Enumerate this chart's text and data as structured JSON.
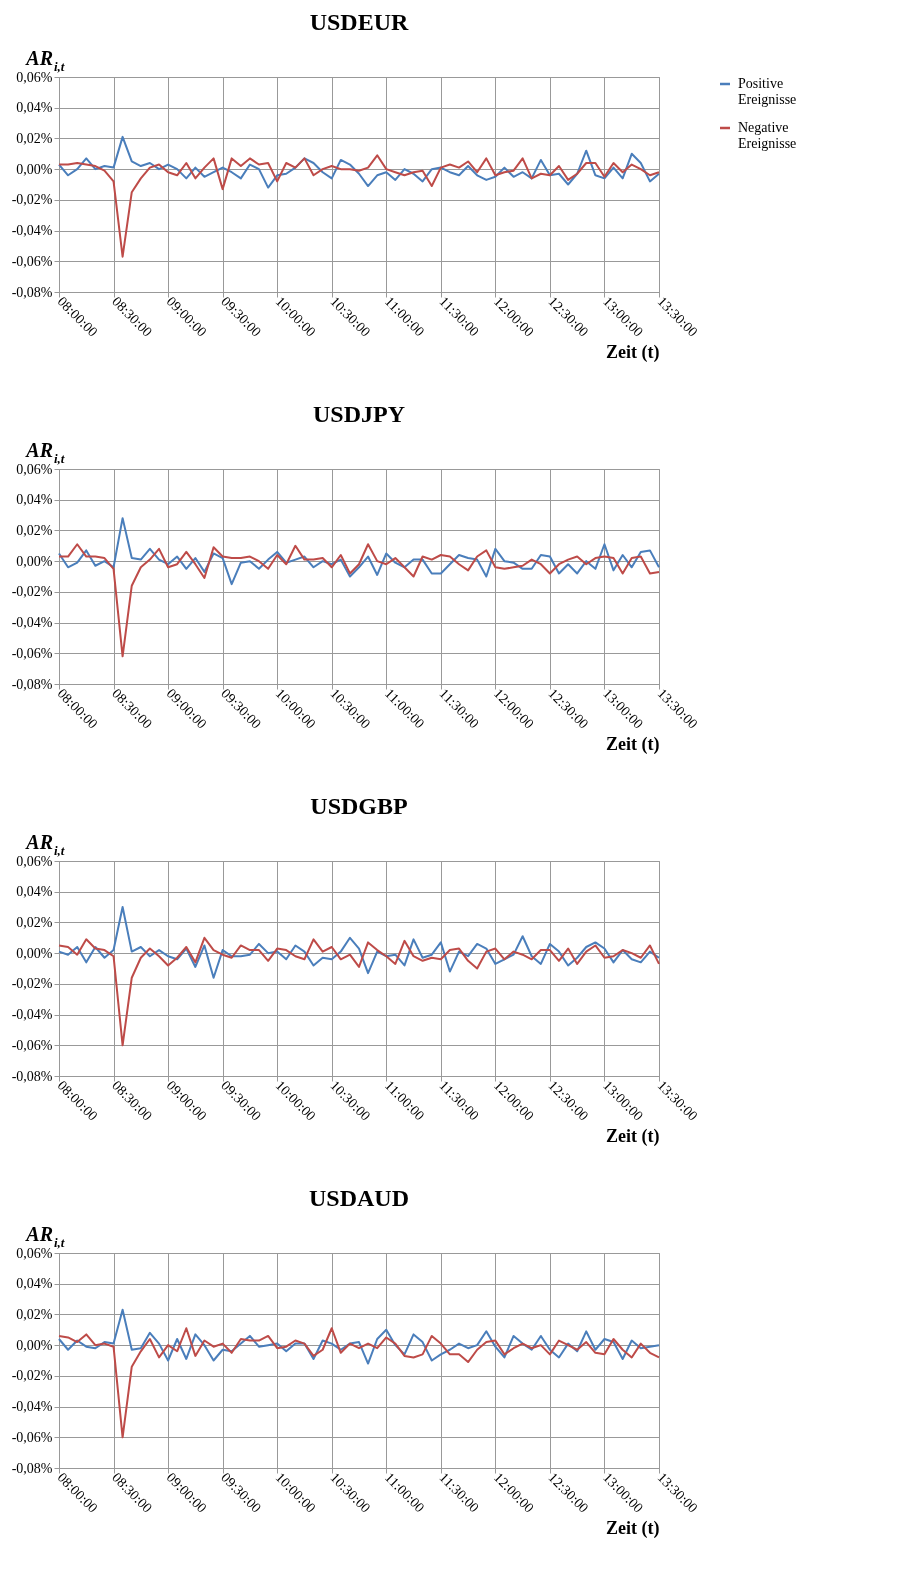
{
  "chart_data": [
    {
      "type": "line",
      "title": "USDEUR",
      "xlabel": "Zeit (t)",
      "ylabel": "AR$_{i,t}$",
      "legend": "right",
      "grid": true,
      "x": [
        8,
        8.083,
        8.167,
        8.25,
        8.333,
        8.417,
        8.5,
        8.583,
        8.667,
        8.75,
        8.833,
        8.917,
        9,
        9.083,
        9.167,
        9.25,
        9.333,
        9.417,
        9.5,
        9.583,
        9.667,
        9.75,
        9.833,
        9.917,
        10,
        10.083,
        10.167,
        10.25,
        10.333,
        10.417,
        10.5,
        10.583,
        10.667,
        10.75,
        10.833,
        10.917,
        11,
        11.083,
        11.167,
        11.25,
        11.333,
        11.417,
        11.5,
        11.583,
        11.667,
        11.75,
        11.833,
        11.917,
        12,
        12.083,
        12.167,
        12.25,
        12.333,
        12.417,
        12.5,
        12.583,
        12.667,
        12.75,
        12.833,
        12.917,
        13,
        13.083,
        13.167,
        13.25,
        13.333,
        13.417,
        13.5
      ],
      "xlim": [
        8,
        13.5
      ],
      "xticks": [
        {
          "value": 8,
          "label": "08:00:00"
        },
        {
          "value": 8.5,
          "label": "08:30:00"
        },
        {
          "value": 9,
          "label": "09:00:00"
        },
        {
          "value": 9.5,
          "label": "09:30:00"
        },
        {
          "value": 10,
          "label": "10:00:00"
        },
        {
          "value": 10.5,
          "label": "10:30:00"
        },
        {
          "value": 11,
          "label": "11:00:00"
        },
        {
          "value": 11.5,
          "label": "11:30:00"
        },
        {
          "value": 12,
          "label": "12:00:00"
        },
        {
          "value": 12.5,
          "label": "12:30:00"
        },
        {
          "value": 13,
          "label": "13:00:00"
        },
        {
          "value": 13.5,
          "label": "13:30:00"
        }
      ],
      "ylim": [
        -0.08,
        0.06
      ],
      "yticks": [
        {
          "value": -0.08,
          "label": "-0,08%"
        },
        {
          "value": -0.06,
          "label": "-0,06%"
        },
        {
          "value": -0.04,
          "label": "-0,04%"
        },
        {
          "value": -0.02,
          "label": "-0,02%"
        },
        {
          "value": 0,
          "label": "0,00%"
        },
        {
          "value": 0.02,
          "label": "0,02%"
        },
        {
          "value": 0.04,
          "label": "0,04%"
        },
        {
          "value": 0.06,
          "label": "0,06%"
        }
      ],
      "series": [
        {
          "name": "Positive Ereignisse",
          "color": "#4a7ebb",
          "values": [
            0.003,
            -0.004,
            0.0,
            0.007,
            0.0,
            0.002,
            0.001,
            0.021,
            0.005,
            0.002,
            0.004,
            0.0,
            0.003,
            0.0,
            -0.006,
            0.001,
            -0.005,
            -0.002,
            0.001,
            -0.002,
            -0.006,
            0.003,
            0.0,
            -0.012,
            -0.004,
            -0.003,
            0.001,
            0.007,
            0.004,
            -0.002,
            -0.006,
            0.006,
            0.003,
            -0.003,
            -0.011,
            -0.004,
            -0.002,
            -0.007,
            0.0,
            -0.003,
            -0.008,
            0.0,
            0.001,
            -0.002,
            -0.004,
            0.002,
            -0.004,
            -0.007,
            -0.005,
            0.001,
            -0.005,
            -0.002,
            -0.006,
            0.006,
            -0.004,
            -0.003,
            -0.01,
            -0.003,
            0.012,
            -0.004,
            -0.006,
            0.001,
            -0.006,
            0.01,
            0.004,
            -0.008,
            -0.003
          ]
        },
        {
          "name": "Negative Ereignisse",
          "color": "#be4b48",
          "values": [
            0.003,
            0.003,
            0.004,
            0.003,
            0.002,
            -0.001,
            -0.008,
            -0.057,
            -0.015,
            -0.006,
            0.001,
            0.003,
            -0.002,
            -0.004,
            0.004,
            -0.006,
            0.001,
            0.007,
            -0.013,
            0.007,
            0.002,
            0.007,
            0.003,
            0.004,
            -0.008,
            0.004,
            0.001,
            0.007,
            -0.004,
            0.0,
            0.002,
            0.0,
            0.0,
            -0.001,
            0.001,
            0.009,
            0.0,
            -0.002,
            -0.004,
            -0.002,
            -0.001,
            -0.011,
            0.001,
            0.003,
            0.001,
            0.005,
            -0.002,
            0.007,
            -0.004,
            -0.002,
            -0.001,
            0.007,
            -0.006,
            -0.003,
            -0.004,
            0.002,
            -0.007,
            -0.003,
            0.004,
            0.004,
            -0.005,
            0.004,
            -0.002,
            0.003,
            0.0,
            -0.004,
            -0.002
          ]
        }
      ]
    },
    {
      "type": "line",
      "title": "USDJPY",
      "xlabel": "Zeit (t)",
      "ylabel": "AR$_{i,t}$",
      "legend": "right",
      "grid": true,
      "x": [
        8,
        8.083,
        8.167,
        8.25,
        8.333,
        8.417,
        8.5,
        8.583,
        8.667,
        8.75,
        8.833,
        8.917,
        9,
        9.083,
        9.167,
        9.25,
        9.333,
        9.417,
        9.5,
        9.583,
        9.667,
        9.75,
        9.833,
        9.917,
        10,
        10.083,
        10.167,
        10.25,
        10.333,
        10.417,
        10.5,
        10.583,
        10.667,
        10.75,
        10.833,
        10.917,
        11,
        11.083,
        11.167,
        11.25,
        11.333,
        11.417,
        11.5,
        11.583,
        11.667,
        11.75,
        11.833,
        11.917,
        12,
        12.083,
        12.167,
        12.25,
        12.333,
        12.417,
        12.5,
        12.583,
        12.667,
        12.75,
        12.833,
        12.917,
        13,
        13.083,
        13.167,
        13.25,
        13.333,
        13.417,
        13.5
      ],
      "xlim": [
        8,
        13.5
      ],
      "xticks": [
        {
          "value": 8,
          "label": "08:00:00"
        },
        {
          "value": 8.5,
          "label": "08:30:00"
        },
        {
          "value": 9,
          "label": "09:00:00"
        },
        {
          "value": 9.5,
          "label": "09:30:00"
        },
        {
          "value": 10,
          "label": "10:00:00"
        },
        {
          "value": 10.5,
          "label": "10:30:00"
        },
        {
          "value": 11,
          "label": "11:00:00"
        },
        {
          "value": 11.5,
          "label": "11:30:00"
        },
        {
          "value": 12,
          "label": "12:00:00"
        },
        {
          "value": 12.5,
          "label": "12:30:00"
        },
        {
          "value": 13,
          "label": "13:00:00"
        },
        {
          "value": 13.5,
          "label": "13:30:00"
        }
      ],
      "ylim": [
        -0.08,
        0.06
      ],
      "yticks": [
        {
          "value": -0.08,
          "label": "-0,08%"
        },
        {
          "value": -0.06,
          "label": "-0,06%"
        },
        {
          "value": -0.04,
          "label": "-0,04%"
        },
        {
          "value": -0.02,
          "label": "-0,02%"
        },
        {
          "value": 0,
          "label": "0,00%"
        },
        {
          "value": 0.02,
          "label": "0,02%"
        },
        {
          "value": 0.04,
          "label": "0,04%"
        },
        {
          "value": 0.06,
          "label": "0,06%"
        }
      ],
      "series": [
        {
          "name": "Positive Ereignisse",
          "color": "#4a7ebb",
          "values": [
            0.005,
            -0.004,
            -0.001,
            0.007,
            -0.003,
            0.0,
            -0.004,
            0.028,
            0.002,
            0.001,
            0.008,
            0.001,
            -0.002,
            0.003,
            -0.005,
            0.002,
            -0.007,
            0.005,
            0.002,
            -0.015,
            -0.001,
            0.0,
            -0.005,
            0.001,
            0.006,
            -0.001,
            0.001,
            0.003,
            -0.004,
            0.0,
            -0.002,
            0.001,
            -0.01,
            -0.004,
            0.003,
            -0.009,
            0.005,
            -0.001,
            -0.004,
            0.001,
            0.001,
            -0.008,
            -0.008,
            -0.002,
            0.004,
            0.002,
            0.001,
            -0.01,
            0.008,
            0.0,
            -0.001,
            -0.005,
            -0.005,
            0.004,
            0.003,
            -0.008,
            -0.002,
            -0.008,
            0.0,
            -0.005,
            0.011,
            -0.006,
            0.004,
            -0.004,
            0.006,
            0.007,
            -0.004
          ]
        },
        {
          "name": "Negative Ereignisse",
          "color": "#be4b48",
          "values": [
            0.003,
            0.003,
            0.011,
            0.003,
            0.003,
            0.002,
            -0.005,
            -0.062,
            -0.016,
            -0.004,
            0.001,
            0.008,
            -0.004,
            -0.002,
            0.006,
            -0.002,
            -0.011,
            0.009,
            0.003,
            0.002,
            0.002,
            0.003,
            0.0,
            -0.005,
            0.004,
            -0.002,
            0.01,
            0.001,
            0.001,
            0.002,
            -0.004,
            0.004,
            -0.008,
            -0.002,
            0.011,
            0.0,
            -0.002,
            0.002,
            -0.004,
            -0.01,
            0.003,
            0.001,
            0.004,
            0.003,
            -0.002,
            -0.006,
            0.003,
            0.007,
            -0.004,
            -0.005,
            -0.004,
            -0.003,
            0.001,
            -0.002,
            -0.008,
            -0.002,
            0.001,
            0.003,
            -0.002,
            0.002,
            0.003,
            0.002,
            -0.008,
            0.002,
            0.003,
            -0.008,
            -0.007
          ]
        }
      ]
    },
    {
      "type": "line",
      "title": "USDGBP",
      "xlabel": "Zeit (t)",
      "ylabel": "AR$_{i,t}$",
      "legend": "right",
      "grid": true,
      "x": [
        8,
        8.083,
        8.167,
        8.25,
        8.333,
        8.417,
        8.5,
        8.583,
        8.667,
        8.75,
        8.833,
        8.917,
        9,
        9.083,
        9.167,
        9.25,
        9.333,
        9.417,
        9.5,
        9.583,
        9.667,
        9.75,
        9.833,
        9.917,
        10,
        10.083,
        10.167,
        10.25,
        10.333,
        10.417,
        10.5,
        10.583,
        10.667,
        10.75,
        10.833,
        10.917,
        11,
        11.083,
        11.167,
        11.25,
        11.333,
        11.417,
        11.5,
        11.583,
        11.667,
        11.75,
        11.833,
        11.917,
        12,
        12.083,
        12.167,
        12.25,
        12.333,
        12.417,
        12.5,
        12.583,
        12.667,
        12.75,
        12.833,
        12.917,
        13,
        13.083,
        13.167,
        13.25,
        13.333,
        13.417,
        13.5
      ],
      "xlim": [
        8,
        13.5
      ],
      "xticks": [
        {
          "value": 8,
          "label": "08:00:00"
        },
        {
          "value": 8.5,
          "label": "08:30:00"
        },
        {
          "value": 9,
          "label": "09:00:00"
        },
        {
          "value": 9.5,
          "label": "09:30:00"
        },
        {
          "value": 10,
          "label": "10:00:00"
        },
        {
          "value": 10.5,
          "label": "10:30:00"
        },
        {
          "value": 11,
          "label": "11:00:00"
        },
        {
          "value": 11.5,
          "label": "11:30:00"
        },
        {
          "value": 12,
          "label": "12:00:00"
        },
        {
          "value": 12.5,
          "label": "12:30:00"
        },
        {
          "value": 13,
          "label": "13:00:00"
        },
        {
          "value": 13.5,
          "label": "13:30:00"
        }
      ],
      "ylim": [
        -0.08,
        0.06
      ],
      "yticks": [
        {
          "value": -0.08,
          "label": "-0,08%"
        },
        {
          "value": -0.06,
          "label": "-0,06%"
        },
        {
          "value": -0.04,
          "label": "-0,04%"
        },
        {
          "value": -0.02,
          "label": "-0,02%"
        },
        {
          "value": 0,
          "label": "0,00%"
        },
        {
          "value": 0.02,
          "label": "0,02%"
        },
        {
          "value": 0.04,
          "label": "0,04%"
        },
        {
          "value": 0.06,
          "label": "0,06%"
        }
      ],
      "series": [
        {
          "name": "Positive Ereignisse",
          "color": "#4a7ebb",
          "values": [
            0.001,
            -0.001,
            0.004,
            -0.006,
            0.004,
            -0.003,
            0.002,
            0.03,
            0.001,
            0.004,
            -0.002,
            0.002,
            -0.002,
            -0.004,
            0.003,
            -0.009,
            0.005,
            -0.016,
            0.002,
            -0.002,
            -0.002,
            -0.001,
            0.006,
            0.0,
            0.001,
            -0.004,
            0.005,
            0.001,
            -0.008,
            -0.003,
            -0.004,
            0.001,
            0.01,
            0.003,
            -0.013,
            0.001,
            -0.002,
            -0.001,
            -0.008,
            0.009,
            -0.003,
            -0.001,
            0.007,
            -0.012,
            0.001,
            -0.002,
            0.006,
            0.003,
            -0.007,
            -0.004,
            -0.001,
            0.011,
            -0.002,
            -0.007,
            0.006,
            0.001,
            -0.008,
            -0.003,
            0.004,
            0.007,
            0.003,
            -0.006,
            0.002,
            -0.004,
            -0.006,
            0.001,
            -0.003
          ]
        },
        {
          "name": "Negative Ereignisse",
          "color": "#be4b48",
          "values": [
            0.005,
            0.004,
            -0.001,
            0.009,
            0.003,
            0.002,
            -0.002,
            -0.06,
            -0.016,
            -0.003,
            0.003,
            -0.002,
            -0.008,
            -0.003,
            0.004,
            -0.006,
            0.01,
            0.002,
            -0.001,
            -0.003,
            0.005,
            0.002,
            0.002,
            -0.005,
            0.003,
            0.002,
            -0.002,
            -0.004,
            0.009,
            0.001,
            0.004,
            -0.004,
            -0.001,
            -0.009,
            0.007,
            0.002,
            -0.002,
            -0.007,
            0.008,
            -0.002,
            -0.005,
            -0.003,
            -0.004,
            0.002,
            0.003,
            -0.005,
            -0.01,
            0.001,
            0.003,
            -0.004,
            0.001,
            -0.001,
            -0.004,
            0.002,
            0.002,
            -0.005,
            0.003,
            -0.007,
            0.001,
            0.005,
            -0.003,
            -0.002,
            0.002,
            0.0,
            -0.003,
            0.005,
            -0.007
          ]
        }
      ]
    },
    {
      "type": "line",
      "title": "USDAUD",
      "xlabel": "Zeit (t)",
      "ylabel": "AR$_{i,t}$",
      "legend": "right",
      "grid": true,
      "x": [
        8,
        8.083,
        8.167,
        8.25,
        8.333,
        8.417,
        8.5,
        8.583,
        8.667,
        8.75,
        8.833,
        8.917,
        9,
        9.083,
        9.167,
        9.25,
        9.333,
        9.417,
        9.5,
        9.583,
        9.667,
        9.75,
        9.833,
        9.917,
        10,
        10.083,
        10.167,
        10.25,
        10.333,
        10.417,
        10.5,
        10.583,
        10.667,
        10.75,
        10.833,
        10.917,
        11,
        11.083,
        11.167,
        11.25,
        11.333,
        11.417,
        11.5,
        11.583,
        11.667,
        11.75,
        11.833,
        11.917,
        12,
        12.083,
        12.167,
        12.25,
        12.333,
        12.417,
        12.5,
        12.583,
        12.667,
        12.75,
        12.833,
        12.917,
        13,
        13.083,
        13.167,
        13.25,
        13.333,
        13.417,
        13.5
      ],
      "xlim": [
        8,
        13.5
      ],
      "xticks": [
        {
          "value": 8,
          "label": "08:00:00"
        },
        {
          "value": 8.5,
          "label": "08:30:00"
        },
        {
          "value": 9,
          "label": "09:00:00"
        },
        {
          "value": 9.5,
          "label": "09:30:00"
        },
        {
          "value": 10,
          "label": "10:00:00"
        },
        {
          "value": 10.5,
          "label": "10:30:00"
        },
        {
          "value": 11,
          "label": "11:00:00"
        },
        {
          "value": 11.5,
          "label": "11:30:00"
        },
        {
          "value": 12,
          "label": "12:00:00"
        },
        {
          "value": 12.5,
          "label": "12:30:00"
        },
        {
          "value": 13,
          "label": "13:00:00"
        },
        {
          "value": 13.5,
          "label": "13:30:00"
        }
      ],
      "ylim": [
        -0.08,
        0.06
      ],
      "yticks": [
        {
          "value": -0.08,
          "label": "-0,08%"
        },
        {
          "value": -0.06,
          "label": "-0,06%"
        },
        {
          "value": -0.04,
          "label": "-0,04%"
        },
        {
          "value": -0.02,
          "label": "-0,02%"
        },
        {
          "value": 0,
          "label": "0,00%"
        },
        {
          "value": 0.02,
          "label": "0,02%"
        },
        {
          "value": 0.04,
          "label": "0,04%"
        },
        {
          "value": 0.06,
          "label": "0,06%"
        }
      ],
      "series": [
        {
          "name": "Positive Ereignisse",
          "color": "#4a7ebb",
          "values": [
            0.004,
            -0.003,
            0.003,
            -0.001,
            -0.002,
            0.002,
            0.001,
            0.023,
            -0.003,
            -0.002,
            0.008,
            0.001,
            -0.01,
            0.004,
            -0.009,
            0.007,
            0.0,
            -0.01,
            -0.003,
            -0.004,
            0.001,
            0.006,
            -0.001,
            0.0,
            0.001,
            -0.004,
            0.001,
            0.001,
            -0.009,
            0.003,
            0.001,
            -0.003,
            0.001,
            0.002,
            -0.012,
            0.004,
            0.01,
            0.0,
            -0.006,
            0.007,
            0.002,
            -0.01,
            -0.006,
            -0.003,
            0.001,
            -0.002,
            0.0,
            0.009,
            -0.001,
            -0.008,
            0.006,
            0.001,
            -0.003,
            0.006,
            -0.003,
            -0.008,
            0.001,
            -0.004,
            0.009,
            -0.003,
            0.004,
            0.002,
            -0.009,
            0.003,
            -0.002,
            -0.001,
            0.0
          ]
        },
        {
          "name": "Negative Ereignisse",
          "color": "#be4b48",
          "values": [
            0.006,
            0.005,
            0.002,
            0.007,
            0.0,
            0.001,
            -0.001,
            -0.06,
            -0.014,
            -0.004,
            0.004,
            -0.008,
            0.0,
            -0.004,
            0.011,
            -0.007,
            0.003,
            -0.001,
            0.001,
            -0.005,
            0.004,
            0.003,
            0.003,
            0.006,
            -0.002,
            -0.001,
            0.003,
            0.001,
            -0.007,
            -0.003,
            0.011,
            -0.005,
            0.001,
            -0.002,
            0.001,
            -0.002,
            0.005,
            0.001,
            -0.007,
            -0.008,
            -0.006,
            0.006,
            0.001,
            -0.006,
            -0.006,
            -0.011,
            -0.003,
            0.002,
            0.003,
            -0.006,
            -0.002,
            0.001,
            -0.002,
            0.0,
            -0.006,
            0.003,
            0.0,
            -0.003,
            0.002,
            -0.005,
            -0.006,
            0.004,
            -0.003,
            -0.008,
            0.001,
            -0.005,
            -0.008
          ]
        }
      ]
    }
  ]
}
